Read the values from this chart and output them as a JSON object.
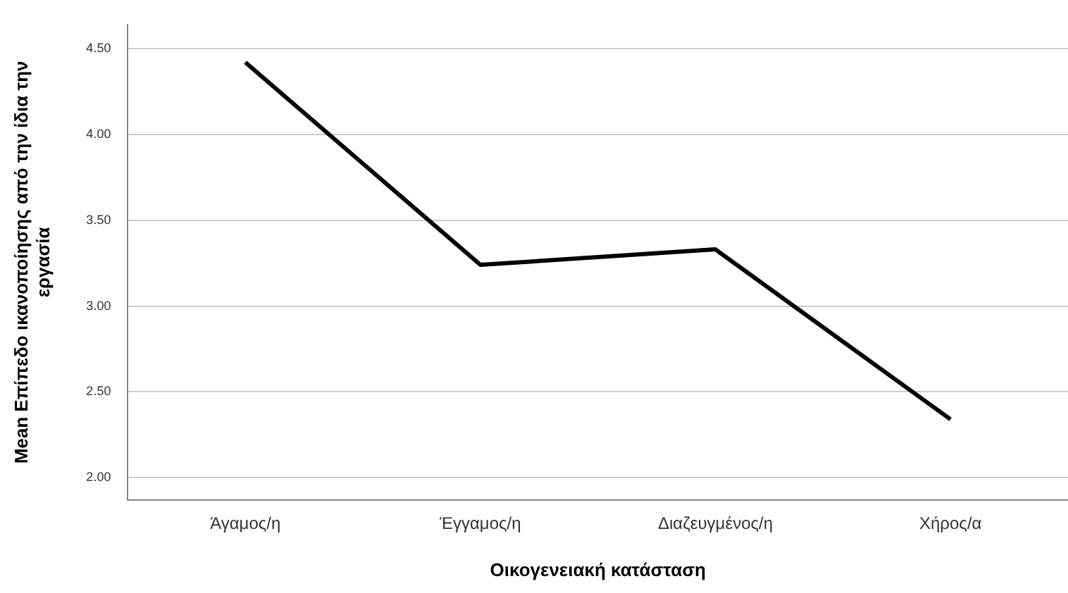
{
  "chart_data": {
    "type": "line",
    "xlabel": "Οικογενειακή κατάσταση",
    "ylabel": "Mean Επίπεδο ικανοποίησης από την ίδια την εργασία",
    "categories": [
      "Άγαμος/η",
      "Έγγαμος/η",
      "Διαζευγμένος/η",
      "Χήρος/α"
    ],
    "series": [
      {
        "color": "#000000",
        "values": [
          4.42,
          3.24,
          3.33,
          2.34
        ]
      }
    ],
    "ylim": [
      1.87,
      4.64
    ],
    "yticks": [
      {
        "value": 2,
        "label": "2.00"
      },
      {
        "value": 2.5,
        "label": "2.50"
      },
      {
        "value": 3,
        "label": "3.00"
      },
      {
        "value": 3.5,
        "label": "3.50"
      },
      {
        "value": 4,
        "label": "4.00"
      },
      {
        "value": 4.5,
        "label": "4.50"
      }
    ],
    "grid": "y",
    "legend": false,
    "marker": "none",
    "line_style": "solid"
  }
}
